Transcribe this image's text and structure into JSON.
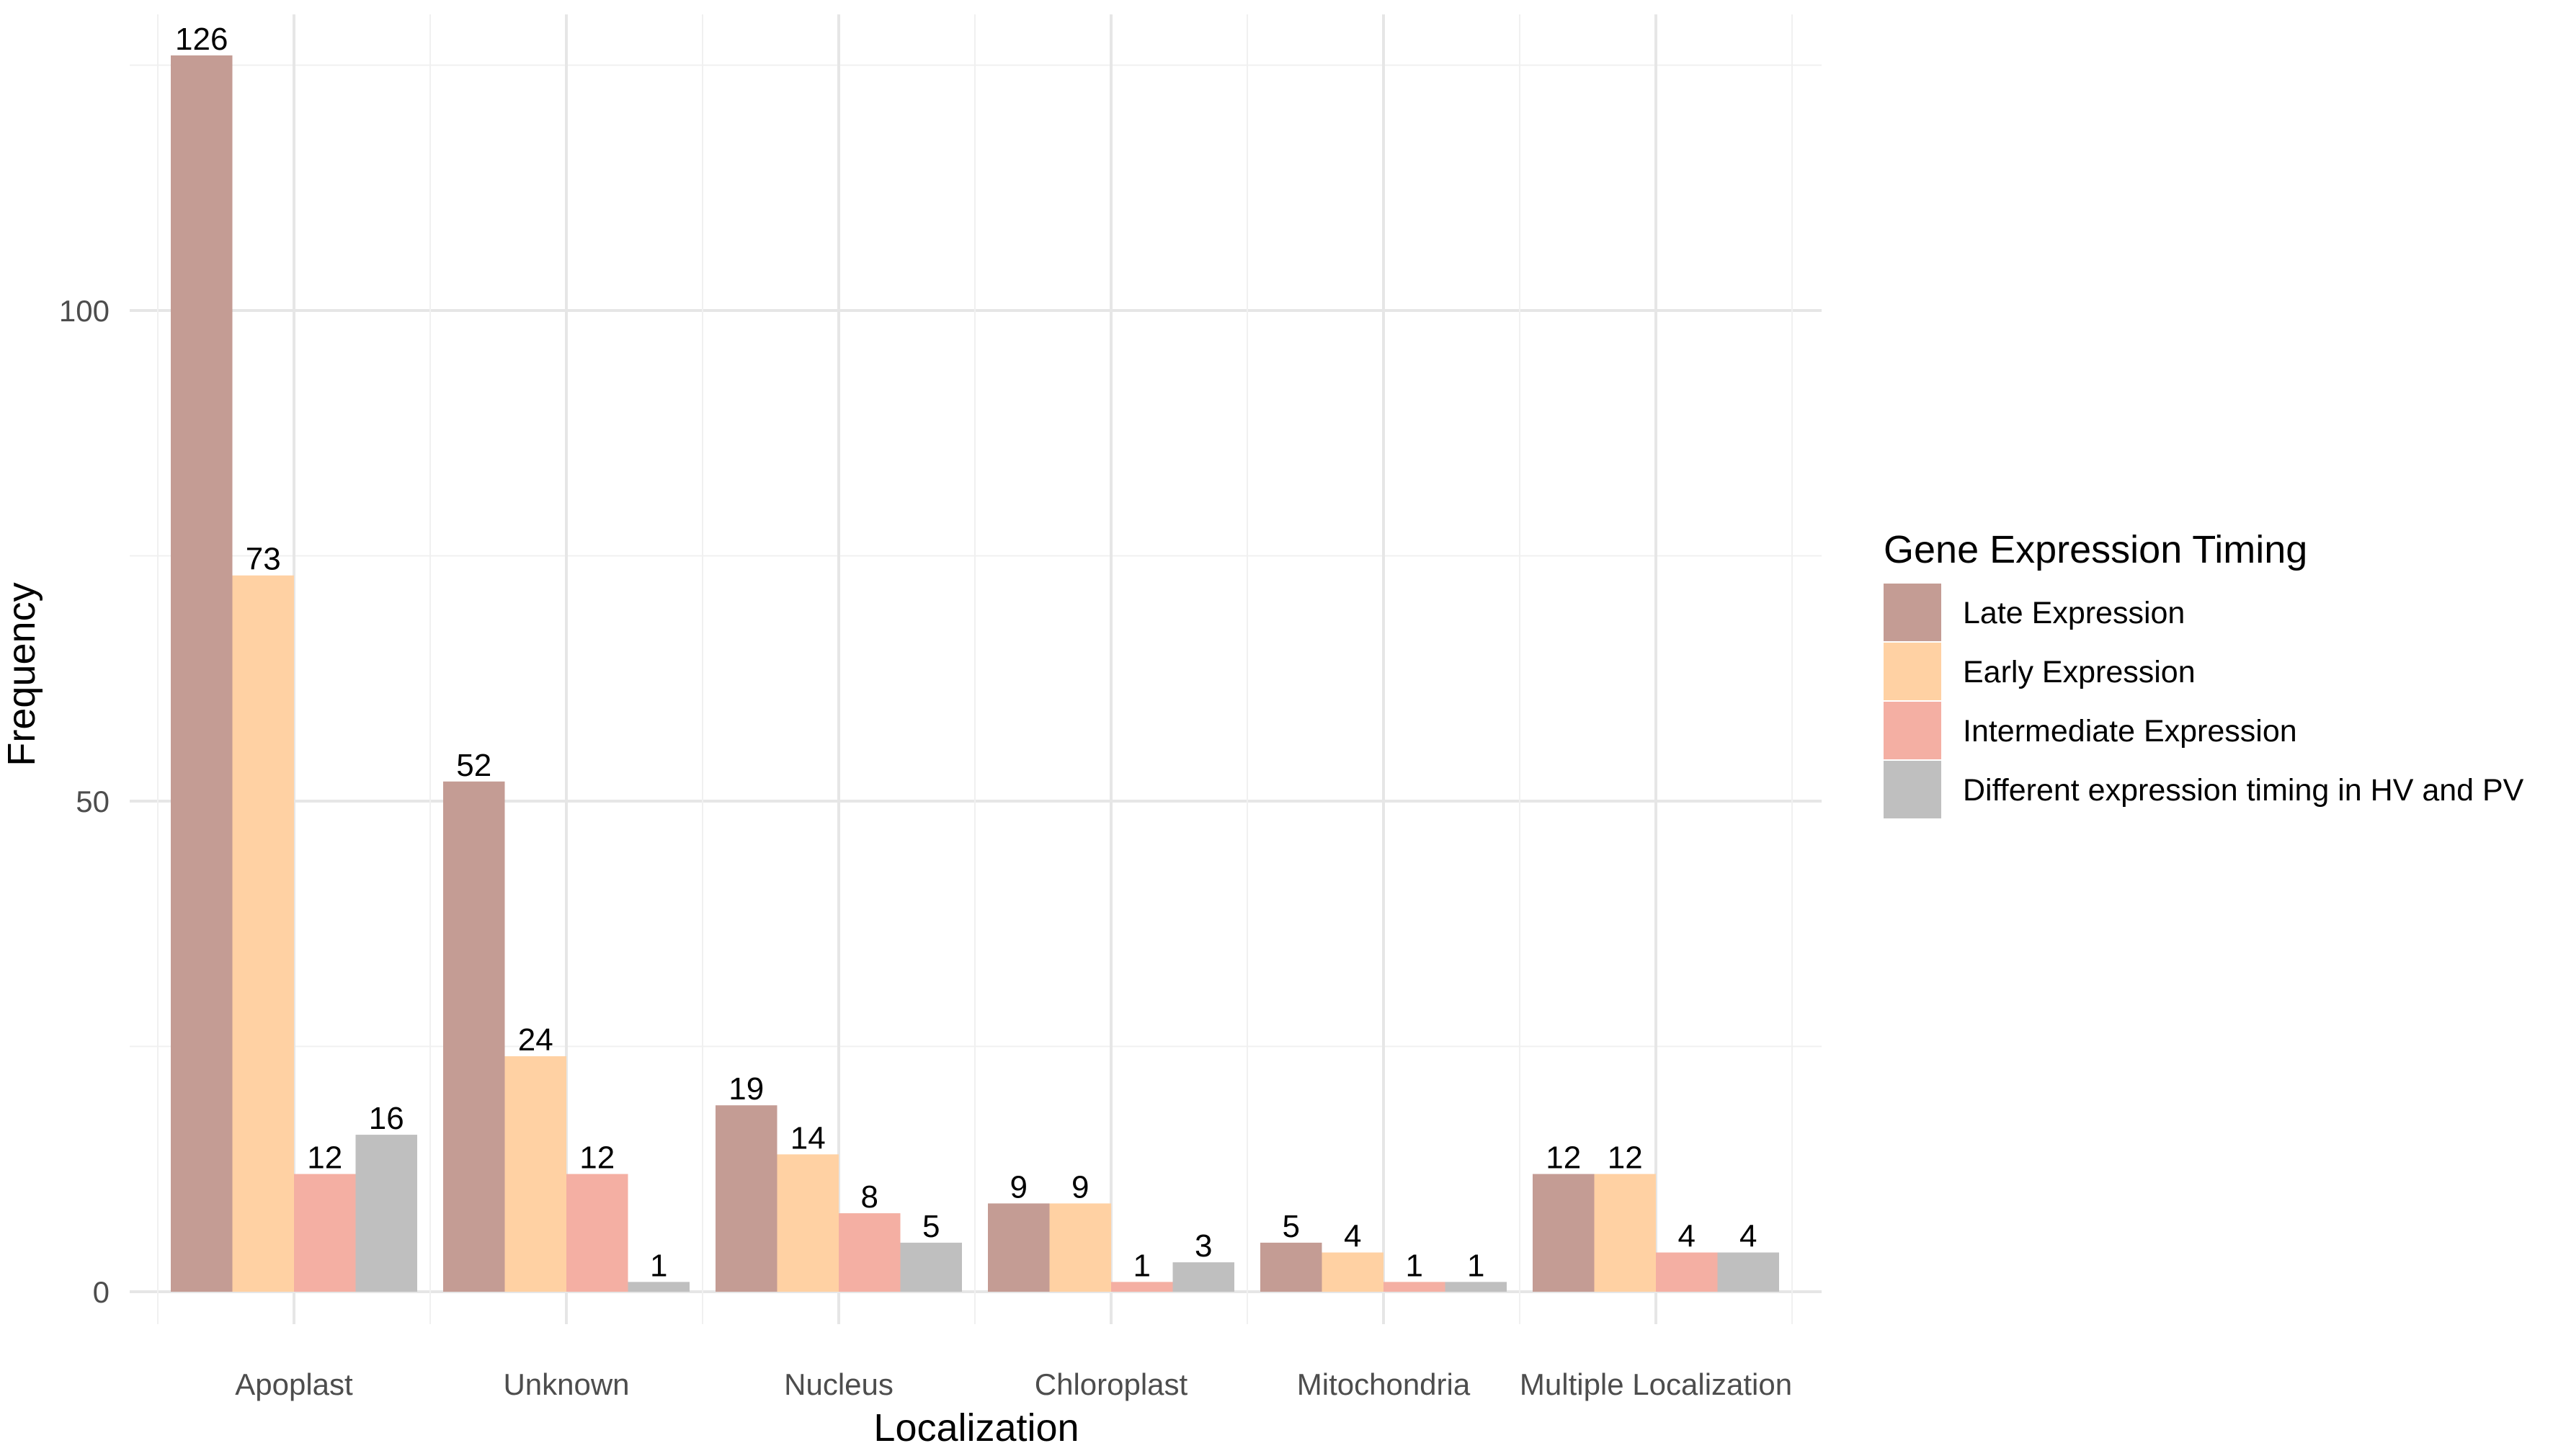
{
  "chart_data": {
    "type": "bar",
    "title": "",
    "xlabel": "Localization",
    "ylabel": "Frequency",
    "ylim": [
      0,
      126
    ],
    "yticks": [
      0,
      50,
      100
    ],
    "grid": true,
    "legend_position": "right",
    "categories": [
      "Apoplast",
      "Unknown",
      "Nucleus",
      "Chloroplast",
      "Mitochondria",
      "Multiple Localization"
    ],
    "legend_title": "Gene Expression Timing",
    "series": [
      {
        "name": "Late Expression",
        "color": "#C49C94",
        "values": [
          126,
          52,
          19,
          9,
          5,
          12
        ]
      },
      {
        "name": "Early Expression",
        "color": "#FFD1A3",
        "values": [
          73,
          24,
          14,
          9,
          4,
          12
        ]
      },
      {
        "name": "Intermediate Expression",
        "color": "#F4AFA3",
        "values": [
          12,
          12,
          8,
          1,
          1,
          4
        ]
      },
      {
        "name": "Different expression timing in HV and PV",
        "color": "#BFBFBF",
        "values": [
          16,
          1,
          5,
          3,
          1,
          4
        ]
      }
    ]
  }
}
